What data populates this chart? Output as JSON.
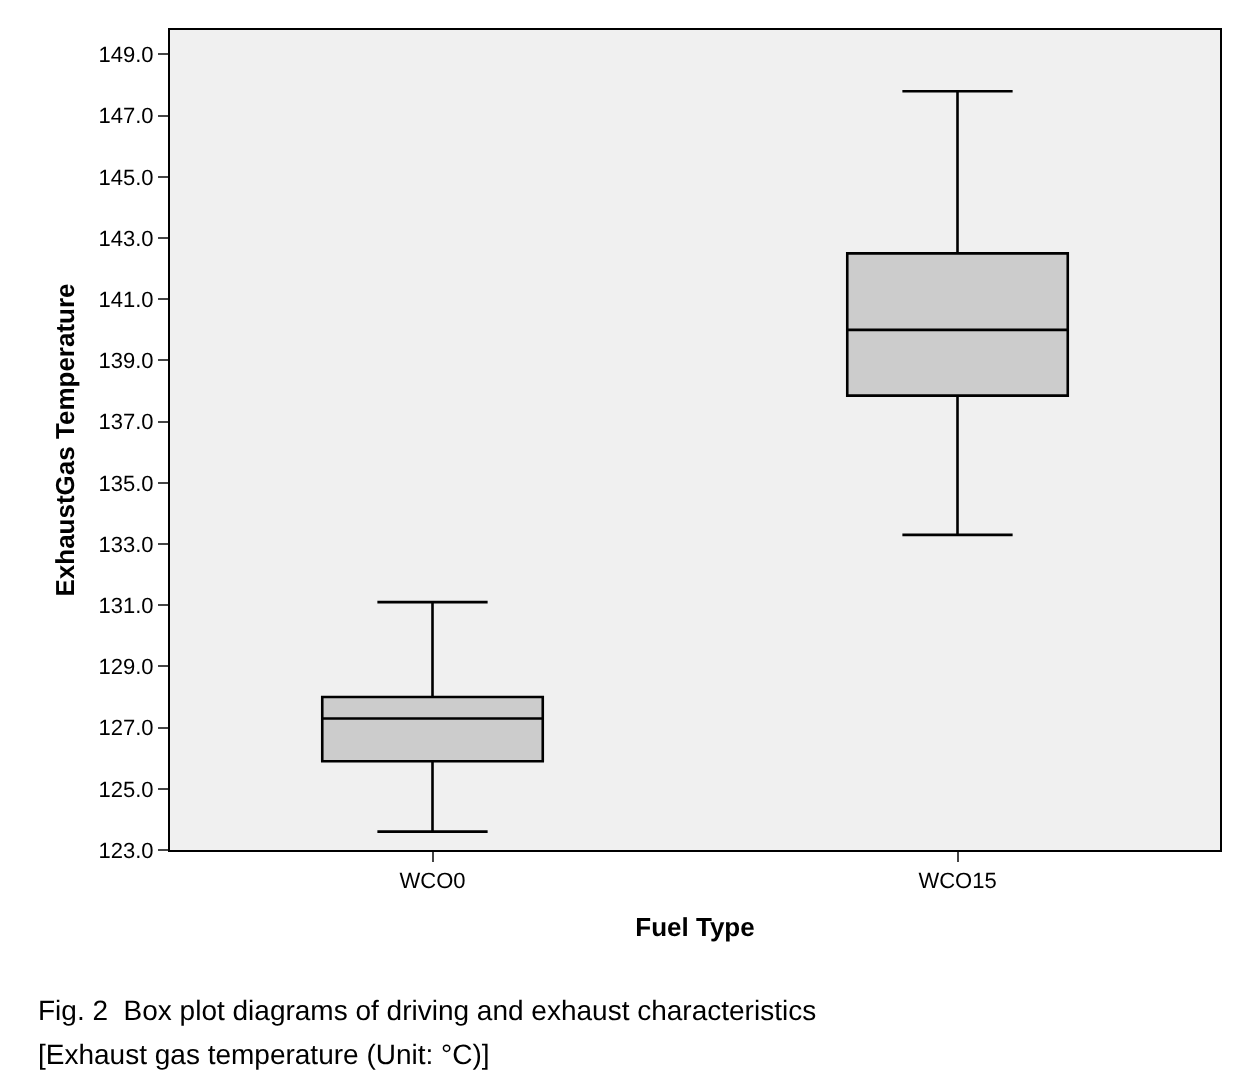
{
  "chart_data": {
    "type": "box",
    "xlabel": "Fuel Type",
    "ylabel": "ExhaustGas Temperature",
    "categories": [
      "WCO0",
      "WCO15"
    ],
    "boxes": [
      {
        "low": 123.6,
        "q1": 125.9,
        "median": 127.3,
        "q3": 128.0,
        "high": 131.1
      },
      {
        "low": 133.3,
        "q1": 137.85,
        "median": 140.0,
        "q3": 142.5,
        "high": 147.8
      }
    ],
    "color": "#cccccc",
    "ylim": [
      123,
      149.8
    ],
    "yticks": [
      {
        "value": 123,
        "label": "123.0"
      },
      {
        "value": 125,
        "label": "125.0"
      },
      {
        "value": 127,
        "label": "127.0"
      },
      {
        "value": 129,
        "label": "129.0"
      },
      {
        "value": 131,
        "label": "131.0"
      },
      {
        "value": 133,
        "label": "133.0"
      },
      {
        "value": 135,
        "label": "135.0"
      },
      {
        "value": 137,
        "label": "137.0"
      },
      {
        "value": 139,
        "label": "139.0"
      },
      {
        "value": 141,
        "label": "141.0"
      },
      {
        "value": 143,
        "label": "143.0"
      },
      {
        "value": 145,
        "label": "145.0"
      },
      {
        "value": 147,
        "label": "147.0"
      },
      {
        "value": 149,
        "label": "149.0"
      }
    ],
    "grid": false,
    "annotations": [
      "Fig. 2  Box plot diagrams of driving and exhaust characteristics",
      "[Exhaust gas temperature (Unit: °C)]"
    ]
  }
}
